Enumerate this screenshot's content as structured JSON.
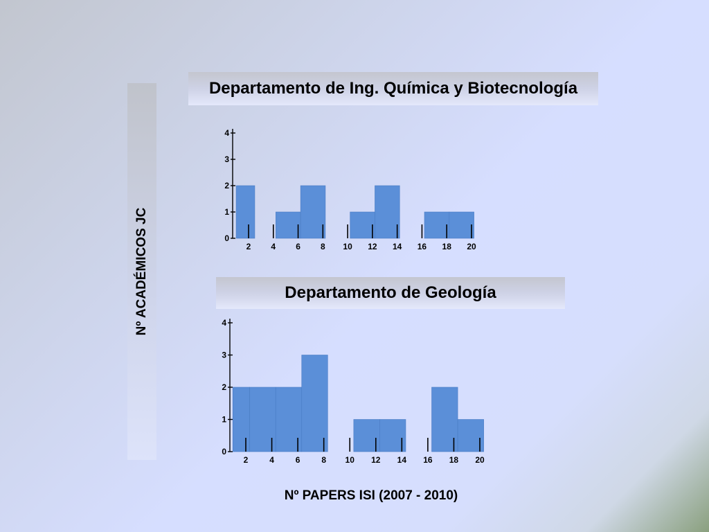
{
  "y_axis_label": "Nº ACADÉMICOS JC",
  "x_axis_label": "Nº PAPERS ISI (2007 - 2010)",
  "chart_data": [
    {
      "type": "bar",
      "title": "Departamento de Ing. Química y Biotecnología",
      "xlabel": "Nº PAPERS ISI (2007 - 2010)",
      "ylabel": "Nº ACADÉMICOS JC",
      "x_ticks": [
        2,
        4,
        6,
        8,
        10,
        12,
        14,
        16,
        18,
        20
      ],
      "y_ticks": [
        0,
        1,
        2,
        3,
        4
      ],
      "ylim": [
        0,
        4
      ],
      "xlim": [
        1,
        20
      ],
      "bars": [
        {
          "x0": 1,
          "x1": 2.5,
          "value": 2
        },
        {
          "x0": 4.2,
          "x1": 6.2,
          "value": 1
        },
        {
          "x0": 6.2,
          "x1": 8.2,
          "value": 2
        },
        {
          "x0": 10.2,
          "x1": 12.2,
          "value": 1
        },
        {
          "x0": 12.2,
          "x1": 14.2,
          "value": 2
        },
        {
          "x0": 16.2,
          "x1": 18.2,
          "value": 1
        },
        {
          "x0": 18.2,
          "x1": 20.2,
          "value": 1
        }
      ],
      "bar_color": "#5b8fd8",
      "grid": false
    },
    {
      "type": "bar",
      "title": "Departamento de Geología",
      "xlabel": "Nº PAPERS ISI (2007 - 2010)",
      "ylabel": "Nº ACADÉMICOS JC",
      "x_ticks": [
        2,
        4,
        6,
        8,
        10,
        12,
        14,
        16,
        18,
        20
      ],
      "y_ticks": [
        0,
        1,
        2,
        3,
        4
      ],
      "ylim": [
        0,
        4
      ],
      "xlim": [
        1,
        20
      ],
      "bars": [
        {
          "x0": 1,
          "x1": 2.3,
          "value": 2
        },
        {
          "x0": 2.3,
          "x1": 4.3,
          "value": 2
        },
        {
          "x0": 4.3,
          "x1": 6.3,
          "value": 2
        },
        {
          "x0": 6.3,
          "x1": 8.3,
          "value": 3
        },
        {
          "x0": 10.3,
          "x1": 12.3,
          "value": 1
        },
        {
          "x0": 12.3,
          "x1": 14.3,
          "value": 1
        },
        {
          "x0": 16.3,
          "x1": 18.3,
          "value": 2
        },
        {
          "x0": 18.3,
          "x1": 20.3,
          "value": 1
        }
      ],
      "bar_color": "#5b8fd8",
      "grid": false
    }
  ]
}
